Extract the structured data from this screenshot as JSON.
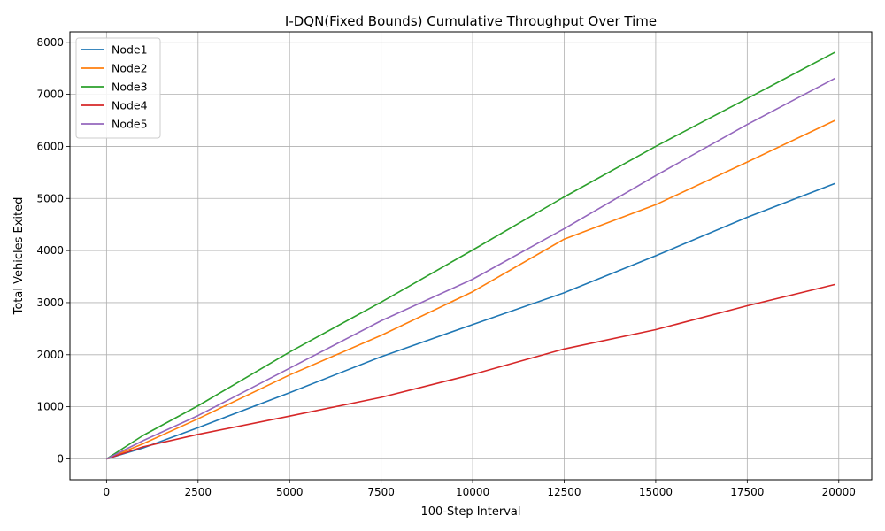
{
  "chart_data": {
    "type": "line",
    "title": "I-DQN(Fixed Bounds) Cumulative Throughput Over Time",
    "xlabel": "100-Step Interval",
    "ylabel": "Total Vehicles Exited",
    "xlim": [
      -1000,
      20900
    ],
    "ylim": [
      -400,
      8200
    ],
    "grid": true,
    "legend_position": "upper-left",
    "x_ticks": [
      0,
      2500,
      5000,
      7500,
      10000,
      12500,
      15000,
      17500,
      20000
    ],
    "y_ticks": [
      0,
      1000,
      2000,
      3000,
      4000,
      5000,
      6000,
      7000,
      8000
    ],
    "x": [
      0,
      1000,
      2500,
      5000,
      7500,
      10000,
      12500,
      15000,
      17500,
      19900
    ],
    "series": [
      {
        "name": "Node1",
        "color": "#1f77b4",
        "values": [
          0,
          210,
          600,
          1270,
          1960,
          2580,
          3190,
          3900,
          4640,
          5290
        ]
      },
      {
        "name": "Node2",
        "color": "#ff7f0e",
        "values": [
          0,
          290,
          770,
          1610,
          2370,
          3210,
          4220,
          4880,
          5700,
          6500
        ]
      },
      {
        "name": "Node3",
        "color": "#2ca02c",
        "values": [
          0,
          450,
          1020,
          2050,
          3010,
          4010,
          5030,
          6000,
          6920,
          7810
        ]
      },
      {
        "name": "Node4",
        "color": "#d62728",
        "values": [
          0,
          230,
          470,
          820,
          1180,
          1620,
          2110,
          2480,
          2940,
          3350
        ]
      },
      {
        "name": "Node5",
        "color": "#9467bd",
        "values": [
          0,
          350,
          830,
          1740,
          2650,
          3450,
          4420,
          5440,
          6420,
          7310
        ]
      }
    ]
  }
}
